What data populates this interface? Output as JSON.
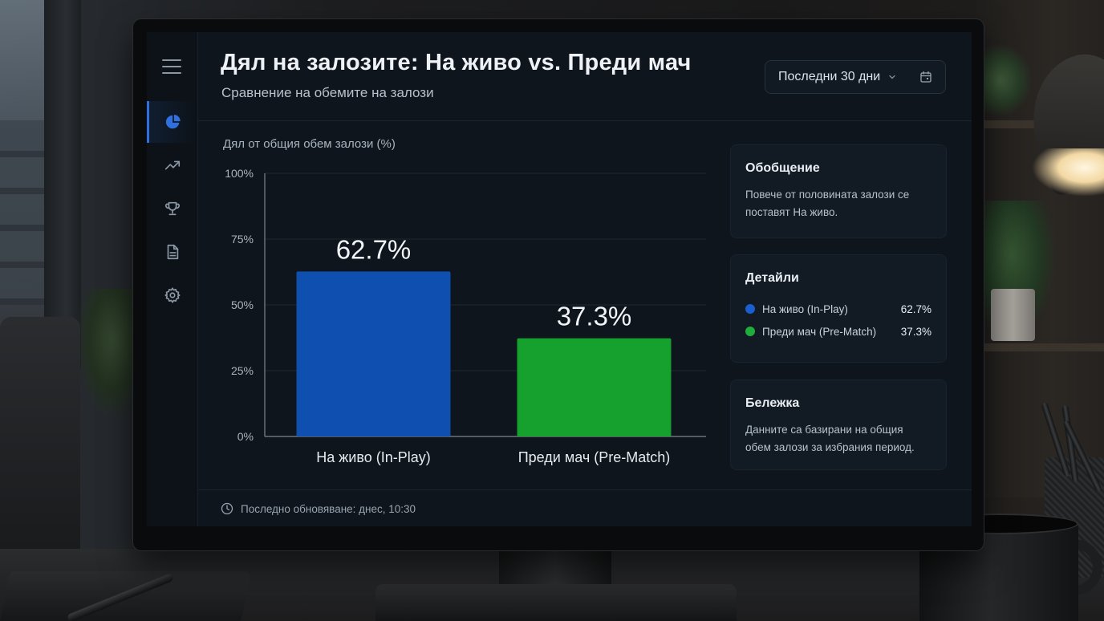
{
  "page": {
    "title": "Дял на залозите: На живо vs. Преди мач",
    "subtitle": "Сравнение на обемите на залози"
  },
  "filter": {
    "date_range": "Последни 30 дни"
  },
  "sidebar": {
    "items": [
      {
        "icon": "pie-chart-icon",
        "active": true
      },
      {
        "icon": "trending-up-icon",
        "active": false
      },
      {
        "icon": "trophy-icon",
        "active": false
      },
      {
        "icon": "document-icon",
        "active": false
      },
      {
        "icon": "settings-icon",
        "active": false
      }
    ]
  },
  "chart_data": {
    "type": "bar",
    "title": "",
    "ylabel": "Дял от общия обем залози (%)",
    "xlabel": "",
    "categories": [
      "На живо (In-Play)",
      "Преди мач (Pre-Match)"
    ],
    "values": [
      62.7,
      37.3
    ],
    "value_labels": [
      "62.7%",
      "37.3%"
    ],
    "colors": [
      "#0f4fb0",
      "#16a02e"
    ],
    "ylim": [
      0,
      100
    ],
    "yticks": [
      0,
      25,
      50,
      75,
      100
    ],
    "ytick_labels": [
      "0%",
      "25%",
      "50%",
      "75%",
      "100%"
    ],
    "grid": true
  },
  "summary": {
    "heading": "Обобщение",
    "text": "Повече от половината залози се поставят На живо."
  },
  "details": {
    "heading": "Детайли",
    "rows": [
      {
        "label": "На живо (In-Play)",
        "value": "62.7%",
        "color": "#1a5fcf"
      },
      {
        "label": "Преди мач (Pre-Match)",
        "value": "37.3%",
        "color": "#1fae3c"
      }
    ]
  },
  "note": {
    "heading": "Бележка",
    "text": "Данните са базирани на общия обем залози за избрания период."
  },
  "footer": {
    "last_updated": "Последно обновяване: днес, 10:30"
  }
}
